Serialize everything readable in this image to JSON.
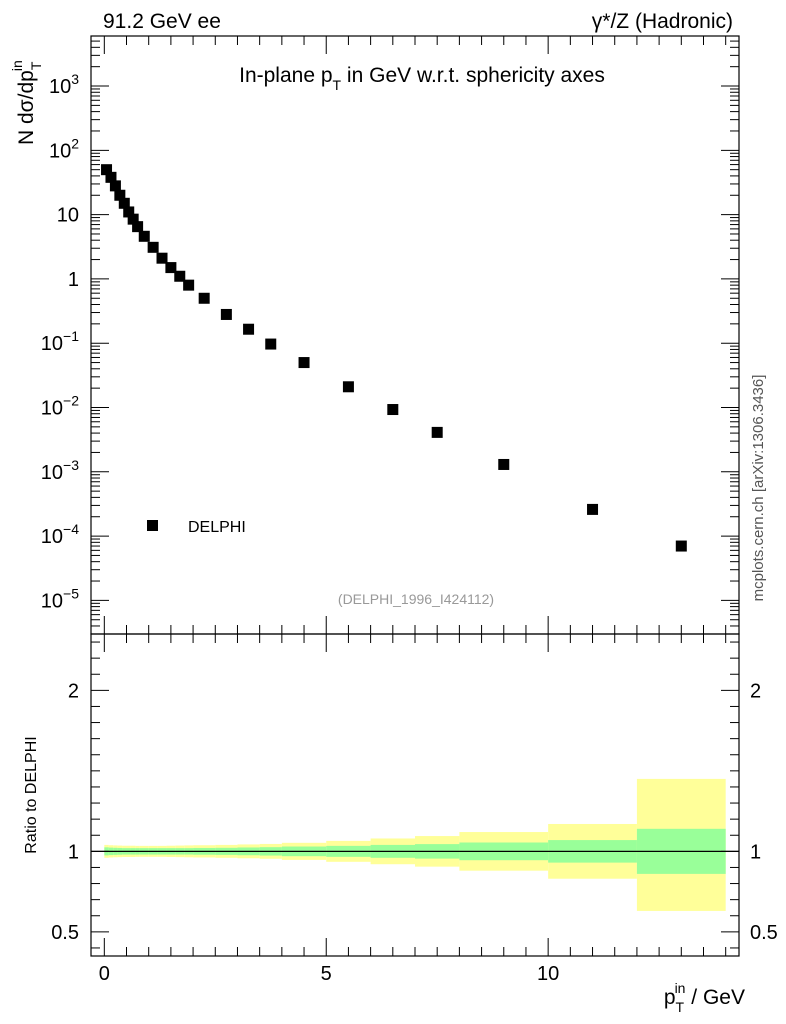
{
  "header": {
    "left": "91.2 GeV ee",
    "right": "γ*/Z (Hadronic)"
  },
  "side_label": "mcplots.cern.ch [arXiv:1306.3436]",
  "chart_data": [
    {
      "type": "scatter",
      "title": "In-plane p_T in GeV w.r.t. sphericity axes",
      "title_parts": [
        "In-plane p",
        "T",
        " in GeV w.r.t. sphericity axes"
      ],
      "ylabel_parts": [
        "N  dσ/dp",
        "T",
        "in"
      ],
      "yscale": "log",
      "ylim": [
        3e-06,
        6000
      ],
      "xlim": [
        -0.3,
        14.3
      ],
      "y_ticks": [
        {
          "v": 1000,
          "label": "10",
          "sup": "3"
        },
        {
          "v": 100,
          "label": "10",
          "sup": "2"
        },
        {
          "v": 10,
          "label": "10",
          "sup": ""
        },
        {
          "v": 1,
          "label": "1",
          "sup": ""
        },
        {
          "v": 0.1,
          "label": "10",
          "sup": "−1"
        },
        {
          "v": 0.01,
          "label": "10",
          "sup": "−2"
        },
        {
          "v": 0.001,
          "label": "10",
          "sup": "−3"
        },
        {
          "v": 0.0001,
          "label": "10",
          "sup": "−4"
        },
        {
          "v": 1e-05,
          "label": "10",
          "sup": "−5"
        }
      ],
      "series": [
        {
          "name": "DELPHI",
          "x": [
            0.05,
            0.15,
            0.25,
            0.35,
            0.45,
            0.55,
            0.65,
            0.75,
            0.9,
            1.1,
            1.3,
            1.5,
            1.7,
            1.9,
            2.25,
            2.75,
            3.25,
            3.75,
            4.5,
            5.5,
            6.5,
            7.5,
            9.0,
            11.0,
            13.0
          ],
          "y": [
            50,
            38,
            28,
            20,
            15,
            11,
            8.5,
            6.5,
            4.6,
            3.1,
            2.1,
            1.5,
            1.1,
            0.8,
            0.5,
            0.28,
            0.165,
            0.097,
            0.05,
            0.021,
            0.0093,
            0.0041,
            0.0013,
            0.00026,
            7e-05
          ]
        }
      ],
      "legend": "DELPHI",
      "legend_position": "bottom-left",
      "annotation": "(DELPHI_1996_I424112)"
    },
    {
      "type": "area",
      "ylabel": "Ratio to DELPHI",
      "xlabel_parts": [
        "p",
        "T",
        "in",
        " / GeV"
      ],
      "ylim": [
        0.35,
        2.35
      ],
      "y_ticks": [
        {
          "v": 0.5,
          "label": "0.5"
        },
        {
          "v": 1,
          "label": "1"
        },
        {
          "v": 2,
          "label": "2"
        }
      ],
      "x_ticks": [
        {
          "v": 0,
          "label": "0"
        },
        {
          "v": 5,
          "label": "5"
        },
        {
          "v": 10,
          "label": "10"
        }
      ],
      "reference_line": 1,
      "bins": [
        [
          0,
          0.1
        ],
        [
          0.1,
          0.2
        ],
        [
          0.2,
          0.3
        ],
        [
          0.3,
          0.4
        ],
        [
          0.4,
          0.5
        ],
        [
          0.5,
          0.6
        ],
        [
          0.6,
          0.7
        ],
        [
          0.7,
          0.8
        ],
        [
          0.8,
          1.0
        ],
        [
          1.0,
          1.2
        ],
        [
          1.2,
          1.4
        ],
        [
          1.4,
          1.6
        ],
        [
          1.6,
          1.8
        ],
        [
          1.8,
          2.0
        ],
        [
          2.0,
          2.5
        ],
        [
          2.5,
          3.0
        ],
        [
          3.0,
          3.5
        ],
        [
          3.5,
          4.0
        ],
        [
          4.0,
          5.0
        ],
        [
          5.0,
          6.0
        ],
        [
          6.0,
          7.0
        ],
        [
          7.0,
          8.0
        ],
        [
          8.0,
          10.0
        ],
        [
          10.0,
          12.0
        ],
        [
          12.0,
          14.0
        ]
      ],
      "inner_band": [
        [
          0.975,
          1.025
        ],
        [
          0.977,
          1.023
        ],
        [
          0.978,
          1.022
        ],
        [
          0.979,
          1.021
        ],
        [
          0.98,
          1.02
        ],
        [
          0.98,
          1.02
        ],
        [
          0.98,
          1.02
        ],
        [
          0.98,
          1.02
        ],
        [
          0.98,
          1.02
        ],
        [
          0.98,
          1.02
        ],
        [
          0.98,
          1.02
        ],
        [
          0.98,
          1.02
        ],
        [
          0.98,
          1.02
        ],
        [
          0.98,
          1.02
        ],
        [
          0.979,
          1.021
        ],
        [
          0.978,
          1.022
        ],
        [
          0.976,
          1.024
        ],
        [
          0.974,
          1.026
        ],
        [
          0.97,
          1.03
        ],
        [
          0.966,
          1.034
        ],
        [
          0.96,
          1.04
        ],
        [
          0.955,
          1.045
        ],
        [
          0.945,
          1.055
        ],
        [
          0.93,
          1.07
        ],
        [
          0.86,
          1.14
        ]
      ],
      "outer_band": [
        [
          0.96,
          1.04
        ],
        [
          0.962,
          1.038
        ],
        [
          0.963,
          1.037
        ],
        [
          0.964,
          1.036
        ],
        [
          0.965,
          1.035
        ],
        [
          0.965,
          1.035
        ],
        [
          0.965,
          1.035
        ],
        [
          0.966,
          1.034
        ],
        [
          0.966,
          1.034
        ],
        [
          0.966,
          1.034
        ],
        [
          0.966,
          1.034
        ],
        [
          0.965,
          1.035
        ],
        [
          0.964,
          1.036
        ],
        [
          0.963,
          1.037
        ],
        [
          0.962,
          1.038
        ],
        [
          0.96,
          1.04
        ],
        [
          0.957,
          1.043
        ],
        [
          0.954,
          1.046
        ],
        [
          0.947,
          1.053
        ],
        [
          0.935,
          1.065
        ],
        [
          0.92,
          1.08
        ],
        [
          0.905,
          1.095
        ],
        [
          0.88,
          1.12
        ],
        [
          0.83,
          1.17
        ],
        [
          0.63,
          1.45
        ]
      ],
      "colors": {
        "inner": "#99ff99",
        "outer": "#ffff99",
        "line": "#000000"
      }
    }
  ]
}
